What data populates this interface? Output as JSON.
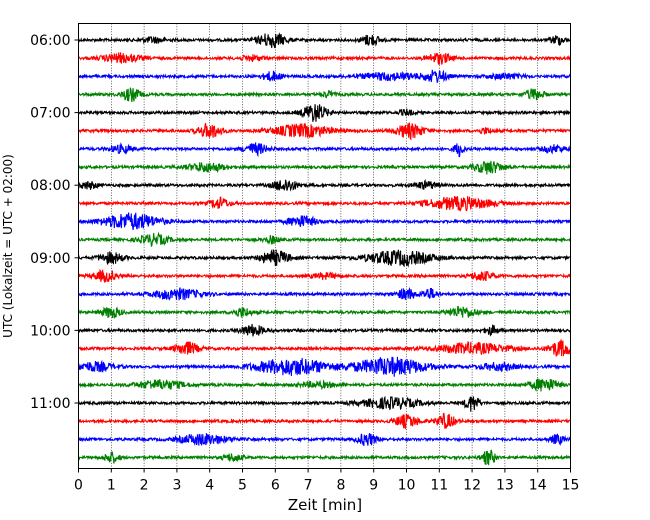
{
  "chart_data": {
    "type": "line",
    "subtype": "helicorder",
    "xlabel": "Zeit  [min]",
    "ylabel": "UTC (Lokalzeit = UTC + 02:00)",
    "xlim": [
      0,
      15
    ],
    "x_ticks": [
      "0",
      "1",
      "2",
      "3",
      "4",
      "5",
      "6",
      "7",
      "8",
      "9",
      "10",
      "11",
      "12",
      "13",
      "14",
      "15"
    ],
    "y_tick_labels": [
      "06:00",
      "07:00",
      "08:00",
      "09:00",
      "10:00",
      "11:00"
    ],
    "minutes_per_line": 15,
    "grid_x": true,
    "line_colors": [
      "#000000",
      "#ff0000",
      "#0000ff",
      "#008000"
    ],
    "traces": [
      {
        "time": "06:00",
        "color": "#000000",
        "bursts": [
          [
            2.3,
            0.5,
            0.3
          ],
          [
            5.9,
            0.6,
            0.8
          ],
          [
            8.9,
            0.4,
            0.6
          ],
          [
            14.6,
            0.3,
            0.5
          ]
        ]
      },
      {
        "time": "06:15",
        "color": "#ff0000",
        "bursts": [
          [
            1.3,
            0.8,
            0.5
          ],
          [
            5.3,
            0.5,
            0.3
          ],
          [
            11.0,
            0.5,
            0.6
          ]
        ]
      },
      {
        "time": "06:30",
        "color": "#0000ff",
        "bursts": [
          [
            5.9,
            0.4,
            0.5
          ],
          [
            9.5,
            1.3,
            0.4
          ],
          [
            10.9,
            0.5,
            0.6
          ],
          [
            13.0,
            0.7,
            0.3
          ]
        ]
      },
      {
        "time": "06:45",
        "color": "#008000",
        "bursts": [
          [
            1.6,
            0.4,
            0.7
          ],
          [
            7.6,
            0.3,
            0.3
          ],
          [
            13.9,
            0.4,
            0.6
          ]
        ]
      },
      {
        "time": "07:00",
        "color": "#000000",
        "bursts": [
          [
            7.2,
            0.5,
            1.0
          ],
          [
            10.0,
            0.3,
            0.3
          ]
        ]
      },
      {
        "time": "07:15",
        "color": "#ff0000",
        "bursts": [
          [
            4.0,
            0.5,
            0.8
          ],
          [
            6.8,
            1.2,
            0.7
          ],
          [
            10.1,
            0.6,
            0.8
          ],
          [
            12.4,
            0.3,
            0.3
          ]
        ]
      },
      {
        "time": "07:30",
        "color": "#0000ff",
        "bursts": [
          [
            1.3,
            0.5,
            0.4
          ],
          [
            5.4,
            0.5,
            0.6
          ],
          [
            11.6,
            0.2,
            0.8
          ],
          [
            14.5,
            0.5,
            0.4
          ]
        ]
      },
      {
        "time": "07:45",
        "color": "#008000",
        "bursts": [
          [
            3.9,
            0.8,
            0.5
          ],
          [
            12.5,
            0.6,
            0.7
          ]
        ]
      },
      {
        "time": "08:00",
        "color": "#000000",
        "bursts": [
          [
            0.3,
            0.4,
            0.4
          ],
          [
            6.3,
            0.5,
            0.7
          ],
          [
            10.6,
            0.5,
            0.4
          ]
        ]
      },
      {
        "time": "08:15",
        "color": "#ff0000",
        "bursts": [
          [
            4.3,
            0.4,
            0.6
          ],
          [
            11.6,
            1.4,
            0.7
          ]
        ]
      },
      {
        "time": "08:30",
        "color": "#0000ff",
        "bursts": [
          [
            1.6,
            1.2,
            0.9
          ],
          [
            6.8,
            0.6,
            0.6
          ]
        ]
      },
      {
        "time": "08:45",
        "color": "#008000",
        "bursts": [
          [
            2.3,
            0.6,
            0.6
          ],
          [
            5.9,
            0.3,
            0.4
          ]
        ]
      },
      {
        "time": "09:00",
        "color": "#000000",
        "bursts": [
          [
            1.0,
            0.5,
            0.6
          ],
          [
            6.0,
            0.6,
            0.8
          ],
          [
            9.8,
            1.4,
            0.8
          ]
        ]
      },
      {
        "time": "09:15",
        "color": "#ff0000",
        "bursts": [
          [
            0.8,
            0.5,
            0.6
          ],
          [
            7.5,
            0.6,
            0.3
          ],
          [
            12.3,
            0.5,
            0.5
          ]
        ]
      },
      {
        "time": "09:30",
        "color": "#0000ff",
        "bursts": [
          [
            3.0,
            1.0,
            0.6
          ],
          [
            10.0,
            0.4,
            0.6
          ],
          [
            10.7,
            0.3,
            0.6
          ]
        ]
      },
      {
        "time": "09:45",
        "color": "#008000",
        "bursts": [
          [
            1.0,
            0.4,
            0.6
          ],
          [
            5.0,
            0.4,
            0.5
          ],
          [
            11.7,
            0.6,
            0.6
          ]
        ]
      },
      {
        "time": "10:00",
        "color": "#000000",
        "bursts": [
          [
            5.3,
            0.5,
            0.6
          ],
          [
            12.6,
            0.3,
            0.5
          ]
        ]
      },
      {
        "time": "10:15",
        "color": "#ff0000",
        "bursts": [
          [
            3.3,
            0.5,
            0.7
          ],
          [
            12.0,
            1.5,
            0.6
          ],
          [
            14.7,
            0.5,
            0.9
          ]
        ]
      },
      {
        "time": "10:30",
        "color": "#0000ff",
        "bursts": [
          [
            0.5,
            0.8,
            0.5
          ],
          [
            6.5,
            1.6,
            0.9
          ],
          [
            9.5,
            1.5,
            1.0
          ],
          [
            12.8,
            0.8,
            0.4
          ]
        ]
      },
      {
        "time": "10:45",
        "color": "#008000",
        "bursts": [
          [
            2.5,
            1.0,
            0.5
          ],
          [
            7.3,
            0.8,
            0.3
          ],
          [
            14.2,
            0.6,
            0.7
          ]
        ]
      },
      {
        "time": "11:00",
        "color": "#000000",
        "bursts": [
          [
            9.5,
            1.2,
            0.6
          ],
          [
            12.0,
            0.3,
            0.9
          ]
        ]
      },
      {
        "time": "11:15",
        "color": "#ff0000",
        "bursts": [
          [
            10.0,
            0.5,
            0.7
          ],
          [
            11.2,
            0.4,
            0.8
          ]
        ]
      },
      {
        "time": "11:30",
        "color": "#0000ff",
        "bursts": [
          [
            3.8,
            1.0,
            0.6
          ],
          [
            8.8,
            0.4,
            0.7
          ],
          [
            14.6,
            0.3,
            0.5
          ]
        ]
      },
      {
        "time": "11:45",
        "color": "#008000",
        "bursts": [
          [
            1.0,
            0.3,
            0.6
          ],
          [
            4.7,
            0.4,
            0.4
          ],
          [
            12.5,
            0.3,
            0.8
          ]
        ]
      }
    ]
  }
}
